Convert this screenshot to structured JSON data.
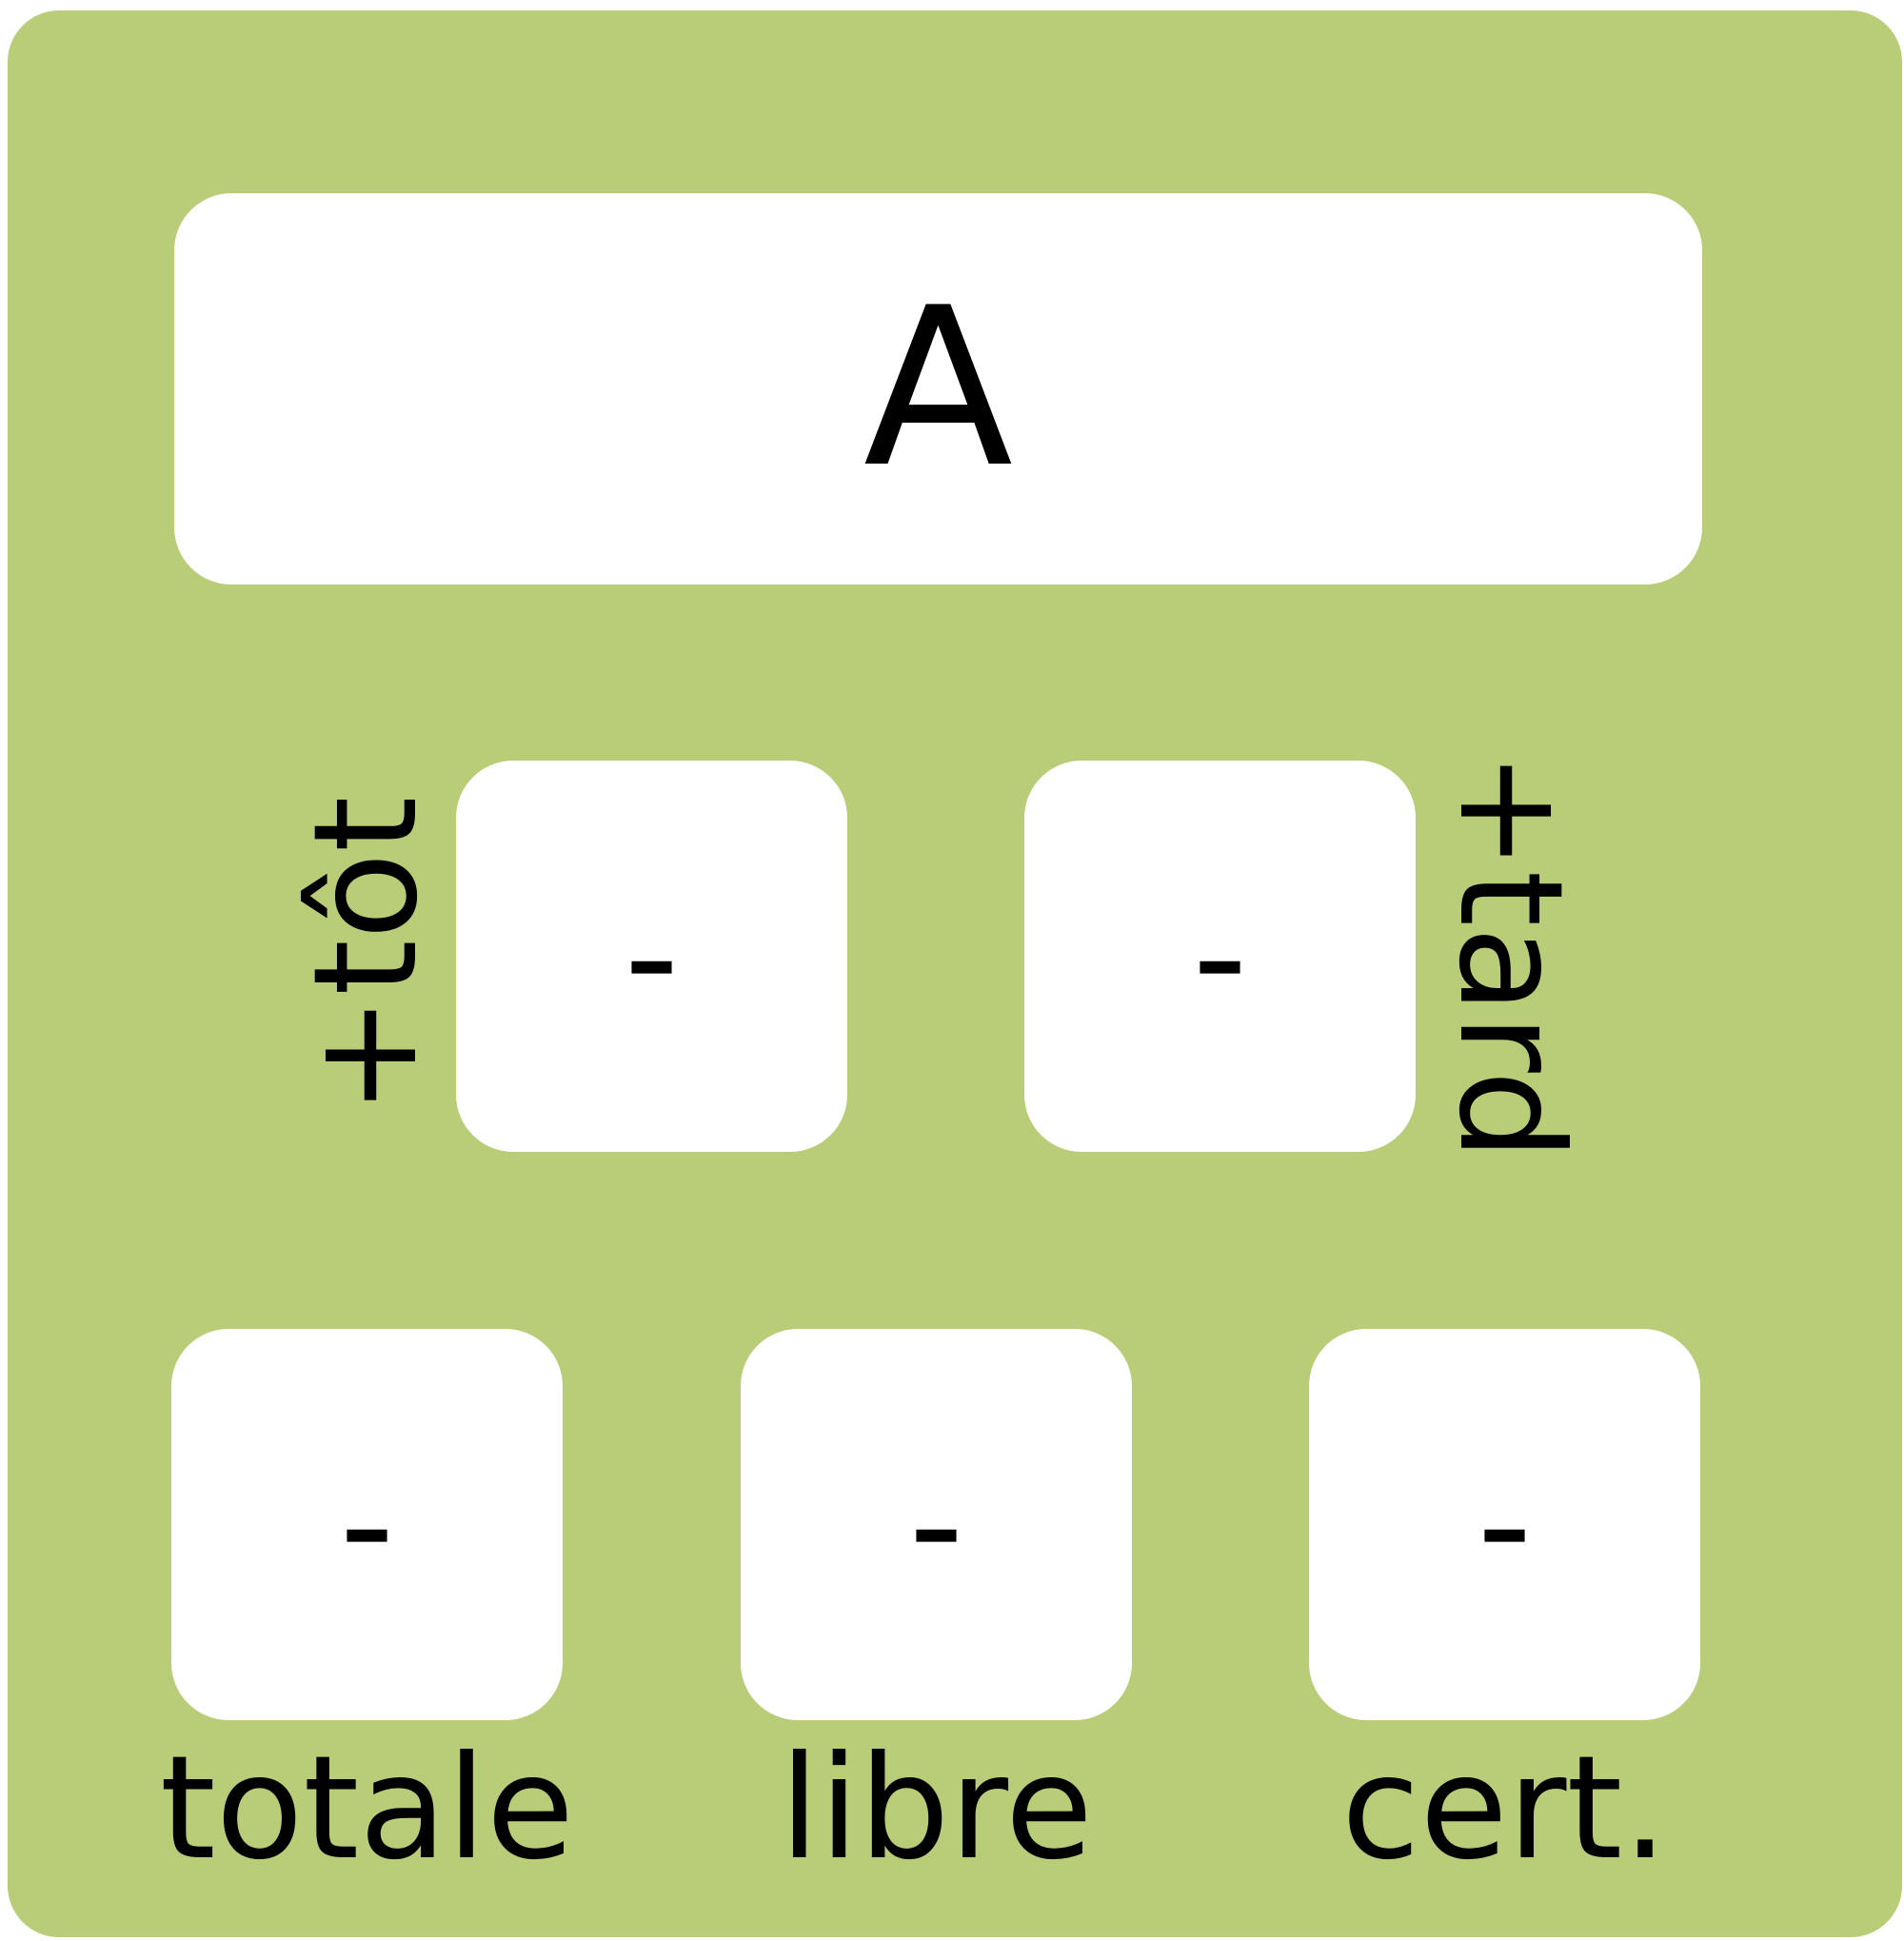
{
  "card": {
    "background_color": "#b9cc78",
    "box_color": "#ffffff",
    "text_color": "#000000"
  },
  "title_box": {
    "value": "A"
  },
  "middle_row": [
    {
      "label": "+tôt",
      "value": "-"
    },
    {
      "label": "+tard",
      "value": "-"
    }
  ],
  "bottom_row": [
    {
      "label": "totale",
      "value": "-"
    },
    {
      "label": "libre",
      "value": "-"
    },
    {
      "label": "cert.",
      "value": "-"
    }
  ]
}
